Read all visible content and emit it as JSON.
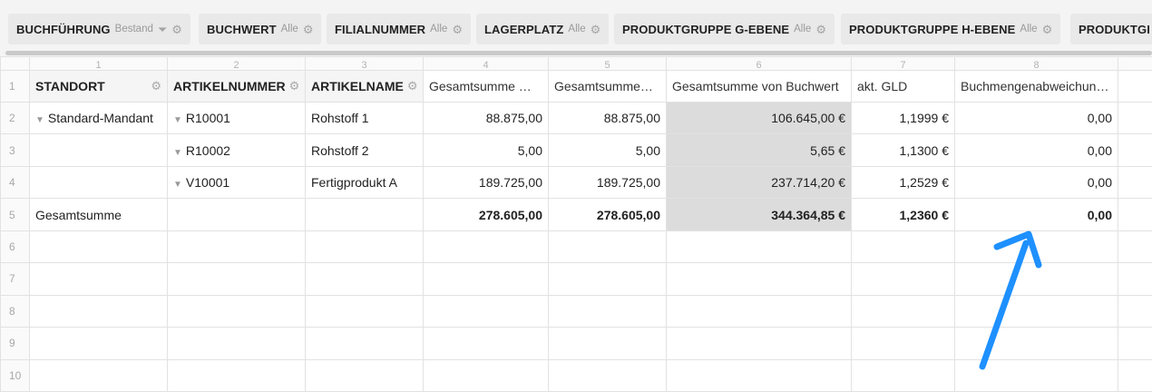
{
  "filters": [
    {
      "name": "BUCHFÜHRUNG",
      "selection": "Bestand",
      "filter_icon": "funnel-icon"
    },
    {
      "name": "BUCHWERT",
      "selection": "Alle"
    },
    {
      "name": "FILIALNUMMER",
      "selection": "Alle"
    },
    {
      "name": "LAGERPLATZ",
      "selection": "Alle"
    },
    {
      "name": "PRODUKTGRUPPE G-EBENE",
      "selection": "Alle"
    },
    {
      "name": "PRODUKTGRUPPE H-EBENE",
      "selection": "Alle"
    },
    {
      "name": "PRODUKTGI",
      "selection": ""
    }
  ],
  "grid": {
    "column_numbers": [
      "1",
      "2",
      "3",
      "4",
      "5",
      "6",
      "7",
      "8"
    ],
    "row_numbers": [
      "1",
      "2",
      "3",
      "4",
      "5",
      "6",
      "7",
      "8",
      "9",
      "10"
    ],
    "headers": {
      "standort": "STANDORT",
      "artikelnummer": "ARTIKELNUMMER",
      "artikelname": "ARTIKELNAME",
      "col4": "Gesamtsumme …",
      "col5": "Gesamtsumme…",
      "col6": "Gesamtsumme von Buchwert",
      "col7": "akt. GLD",
      "col8": "Buchmengenabweichung"
    },
    "rows": [
      {
        "standort": "Standard-Mandant",
        "artikelnummer": "R10001",
        "artikelname": "Rohstoff 1",
        "c4": "88.875,00",
        "c5": "88.875,00",
        "c6": "106.645,00 €",
        "c7": "1,1999 €",
        "c8": "0,00"
      },
      {
        "standort": "",
        "artikelnummer": "R10002",
        "artikelname": "Rohstoff 2",
        "c4": "5,00",
        "c5": "5,00",
        "c6": "5,65 €",
        "c7": "1,1300 €",
        "c8": "0,00"
      },
      {
        "standort": "",
        "artikelnummer": "V10001",
        "artikelname": "Fertigprodukt A",
        "c4": "189.725,00",
        "c5": "189.725,00",
        "c6": "237.714,20 €",
        "c7": "1,2529 €",
        "c8": "0,00"
      }
    ],
    "total": {
      "label": "Gesamtsumme",
      "c4": "278.605,00",
      "c5": "278.605,00",
      "c6": "344.364,85 €",
      "c7": "1,2360 €",
      "c8": "0,00"
    }
  },
  "colors": {
    "annotation_arrow": "#1e90ff",
    "highlight_column": "#dcdcdc"
  }
}
